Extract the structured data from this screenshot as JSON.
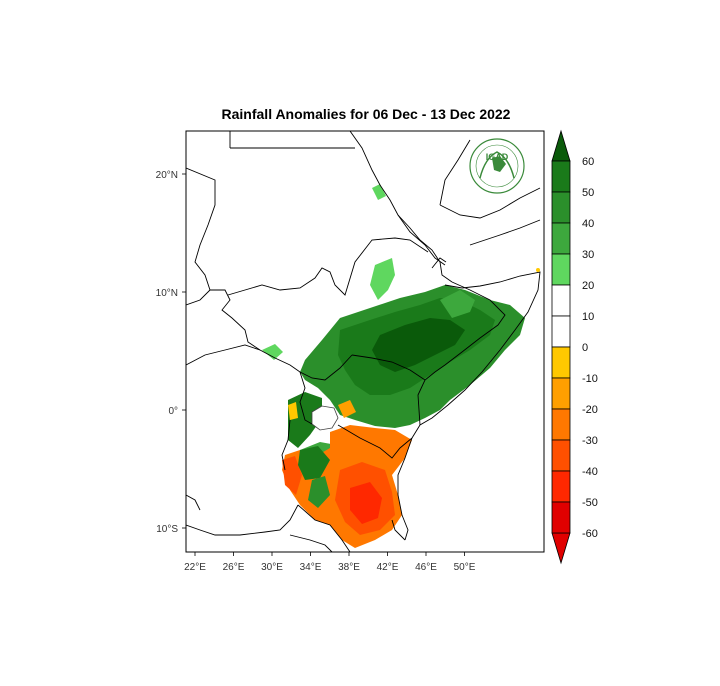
{
  "title": "Rainfall Anomalies for 06 Dec - 13 Dec 2022",
  "logo": {
    "text": "IGAD"
  },
  "axes": {
    "lon_ticks": [
      "22°E",
      "26°E",
      "30°E",
      "34°E",
      "38°E",
      "42°E",
      "46°E",
      "50°E"
    ],
    "lat_ticks": [
      "20°N",
      "10°N",
      "0°",
      "10°S"
    ]
  },
  "legend": {
    "labels": [
      "60",
      "50",
      "40",
      "30",
      "20",
      "10",
      "0",
      "-10",
      "-20",
      "-30",
      "-40",
      "-50",
      "-60"
    ],
    "colors": [
      "#0a5a0a",
      "#1a7a1a",
      "#2b8f2b",
      "#3da83d",
      "#5fd75f",
      "#ffffff",
      "#ffffff",
      "#ffc800",
      "#ff9f00",
      "#ff7800",
      "#ff5000",
      "#ff2800",
      "#e00000"
    ],
    "top_color": "#0a5a0a",
    "bottom_color": "#e00000"
  },
  "colors": {
    "border": "#000000",
    "coast": "#555555",
    "wet": "#3da83d",
    "dry": "#ff5000"
  }
}
